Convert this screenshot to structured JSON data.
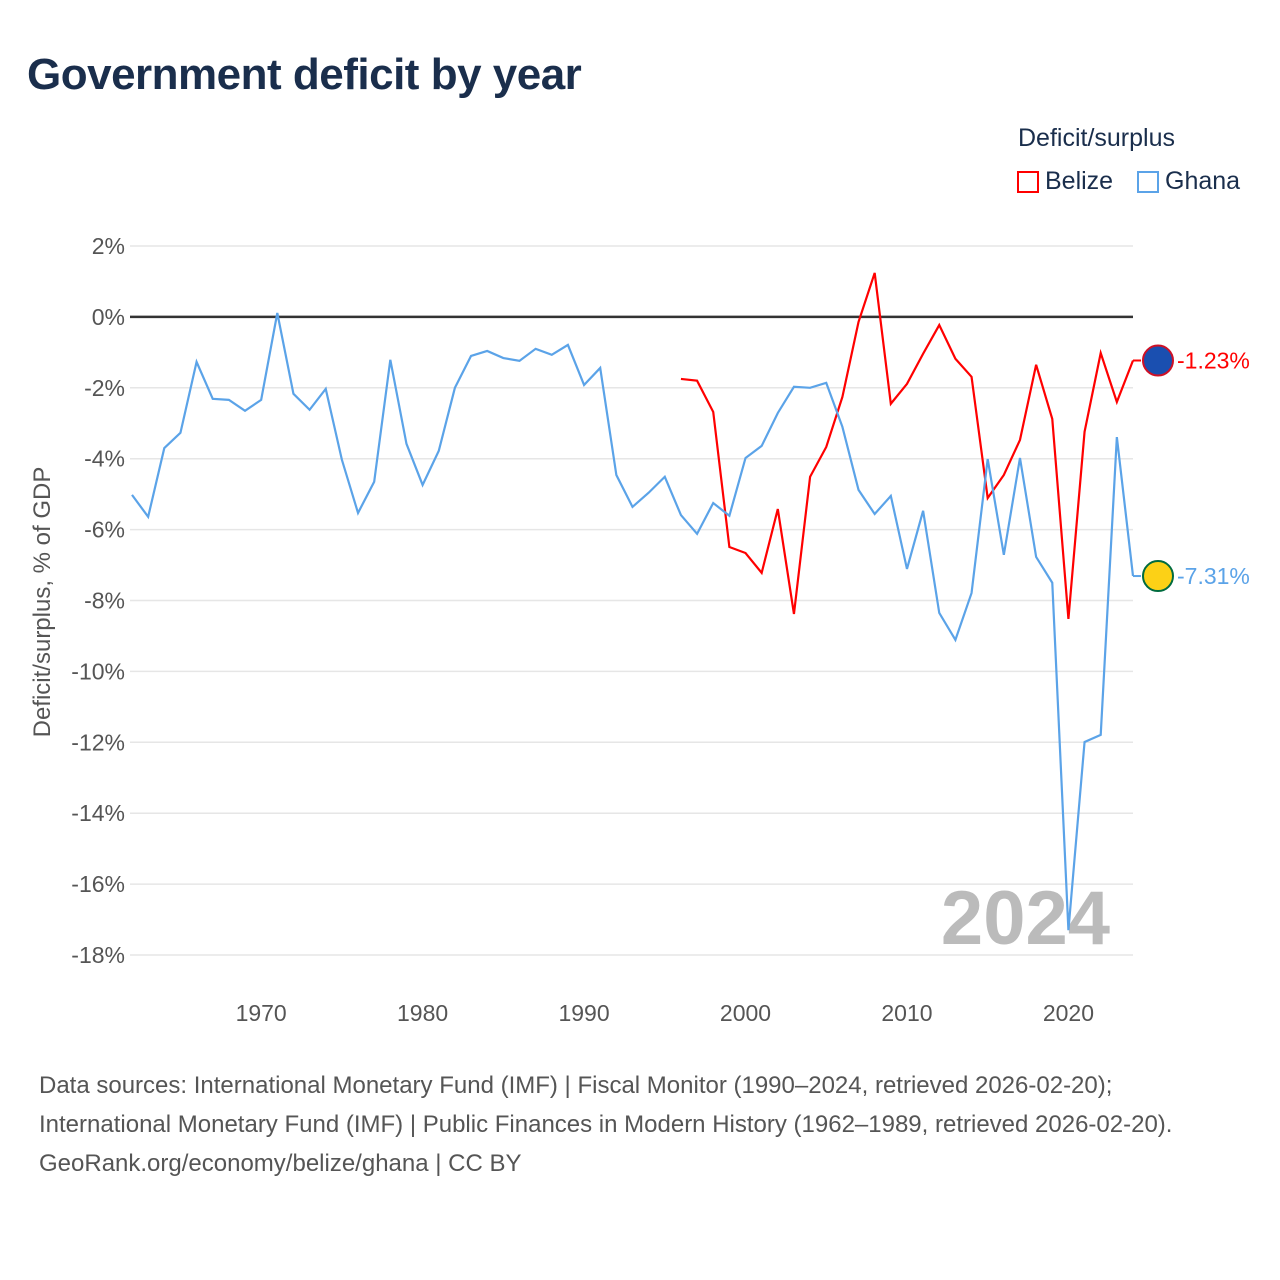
{
  "title": "Government deficit by year",
  "legend": {
    "title": "Deficit/surplus",
    "items": [
      {
        "name": "Belize",
        "color": "#ff0000"
      },
      {
        "name": "Ghana",
        "color": "#5ba3e8"
      }
    ]
  },
  "year_label": "2024",
  "footer": {
    "sources": "Data sources: International Monetary Fund (IMF) | Fiscal Monitor (1990–2024, retrieved 2026-02-20); International Monetary Fund (IMF) | Public Finances in Modern History (1962–1989, retrieved 2026-02-20).",
    "credit": "GeoRank.org/economy/belize/ghana | CC BY"
  },
  "chart_data": {
    "type": "line",
    "title": "Government deficit by year",
    "xlabel": "",
    "ylabel": "Deficit/surplus, % of GDP",
    "xlim": [
      1962,
      2024
    ],
    "ylim": [
      -18,
      2
    ],
    "yticks": [
      2,
      0,
      -2,
      -4,
      -6,
      -8,
      -10,
      -12,
      -14,
      -16,
      -18
    ],
    "ytick_labels": [
      "2%",
      "0%",
      "-2%",
      "-4%",
      "-6%",
      "-8%",
      "-10%",
      "-12%",
      "-14%",
      "-16%",
      "-18%"
    ],
    "xticks": [
      1970,
      1980,
      1990,
      2000,
      2010,
      2020
    ],
    "xtick_labels": [
      "1970",
      "1980",
      "1990",
      "2000",
      "2010",
      "2020"
    ],
    "grid": true,
    "legend_position": "top-right",
    "series": [
      {
        "name": "Belize",
        "color": "#ff0000",
        "end_label": "-1.23%",
        "x": [
          1996,
          1997,
          1998,
          1999,
          2000,
          2001,
          2002,
          2003,
          2004,
          2005,
          2006,
          2007,
          2008,
          2009,
          2010,
          2011,
          2012,
          2013,
          2014,
          2015,
          2016,
          2017,
          2018,
          2019,
          2020,
          2021,
          2022,
          2023,
          2024
        ],
        "values": [
          -1.75,
          -1.8,
          -2.68,
          -6.49,
          -6.66,
          -7.22,
          -5.42,
          -8.38,
          -4.51,
          -3.67,
          -2.26,
          -0.14,
          1.24,
          -2.45,
          -1.89,
          -1.04,
          -0.23,
          -1.18,
          -1.69,
          -5.11,
          -4.46,
          -3.47,
          -1.35,
          -2.88,
          -8.52,
          -3.24,
          -1.02,
          -2.4,
          -1.23
        ]
      },
      {
        "name": "Ghana",
        "color": "#5ba3e8",
        "end_label": "-7.31%",
        "x": [
          1962,
          1963,
          1964,
          1965,
          1966,
          1967,
          1968,
          1969,
          1970,
          1971,
          1972,
          1973,
          1974,
          1975,
          1976,
          1977,
          1978,
          1979,
          1980,
          1981,
          1982,
          1983,
          1984,
          1985,
          1986,
          1987,
          1988,
          1989,
          1990,
          1991,
          1992,
          1993,
          1994,
          1995,
          1996,
          1997,
          1998,
          1999,
          2000,
          2001,
          2002,
          2003,
          2004,
          2005,
          2006,
          2007,
          2008,
          2009,
          2010,
          2011,
          2012,
          2013,
          2014,
          2015,
          2016,
          2017,
          2018,
          2019,
          2020,
          2021,
          2022,
          2023,
          2024
        ],
        "values": [
          -5.02,
          -5.64,
          -3.7,
          -3.27,
          -1.27,
          -2.31,
          -2.34,
          -2.65,
          -2.34,
          0.11,
          -2.17,
          -2.62,
          -2.03,
          -4.03,
          -5.53,
          -4.65,
          -1.21,
          -3.58,
          -4.74,
          -3.78,
          -2.0,
          -1.1,
          -0.96,
          -1.16,
          -1.24,
          -0.9,
          -1.07,
          -0.79,
          -1.92,
          -1.44,
          -4.46,
          -5.36,
          -4.96,
          -4.51,
          -5.59,
          -6.12,
          -5.25,
          -5.61,
          -3.98,
          -3.64,
          -2.71,
          -1.97,
          -2.0,
          -1.86,
          -3.1,
          -4.88,
          -5.56,
          -5.05,
          -7.11,
          -5.47,
          -8.35,
          -9.11,
          -7.79,
          -4.01,
          -6.71,
          -3.98,
          -6.77,
          -7.5,
          -17.3,
          -11.99,
          -11.79,
          -3.39,
          -7.31
        ]
      }
    ]
  }
}
